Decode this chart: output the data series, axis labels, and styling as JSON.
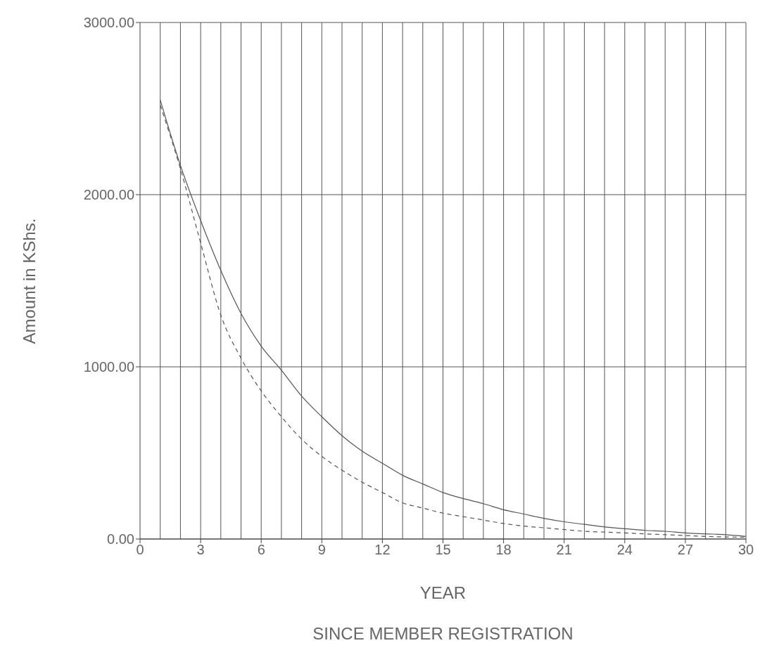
{
  "chart_data": {
    "type": "line",
    "xlabel": "YEAR",
    "ylabel": "Amount in KShs.",
    "annotations": [
      "SINCE MEMBER REGISTRATION"
    ],
    "x": [
      1,
      2,
      3,
      4,
      5,
      6,
      7,
      8,
      9,
      10,
      11,
      12,
      13,
      14,
      15,
      16,
      17,
      18,
      19,
      20,
      21,
      22,
      23,
      24,
      25,
      26,
      27,
      28,
      29,
      30
    ],
    "series": [
      {
        "color": "#555555",
        "line_style": "solid",
        "values": [
          2550,
          2170,
          1850,
          1560,
          1310,
          1120,
          980,
          830,
          710,
          600,
          510,
          440,
          370,
          320,
          270,
          235,
          205,
          170,
          145,
          120,
          100,
          85,
          70,
          60,
          50,
          45,
          35,
          30,
          25,
          15
        ]
      },
      {
        "color": "#555555",
        "line_style": "dashed",
        "values": [
          2520,
          2150,
          1720,
          1300,
          1050,
          860,
          710,
          580,
          480,
          400,
          330,
          270,
          210,
          180,
          150,
          130,
          110,
          90,
          75,
          65,
          55,
          45,
          40,
          35,
          30,
          25,
          20,
          15,
          12,
          10
        ]
      }
    ],
    "xlim": [
      0,
      30
    ],
    "xticks": [
      0,
      3,
      6,
      9,
      12,
      15,
      18,
      21,
      24,
      27,
      30
    ],
    "ylim": [
      0,
      3000
    ],
    "yticks": [
      {
        "value": 0,
        "label": "0.00"
      },
      {
        "value": 1000,
        "label": "1000.00"
      },
      {
        "value": 2000,
        "label": "2000.00"
      },
      {
        "value": 3000,
        "label": "3000.00"
      }
    ],
    "grid": true,
    "marker": "none"
  }
}
